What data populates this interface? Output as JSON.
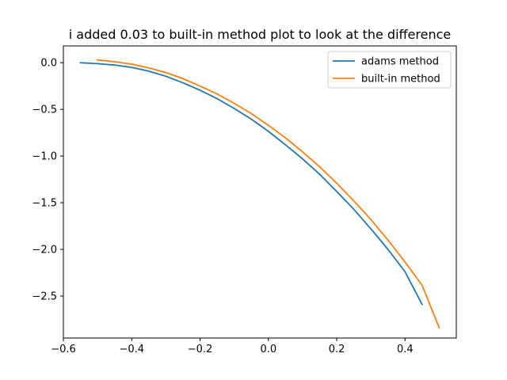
{
  "chart_data": {
    "type": "line",
    "title": "i added 0.03 to built-in method plot to look at the difference",
    "xlabel": "",
    "ylabel": "",
    "xlim": [
      -0.6,
      0.55
    ],
    "ylim": [
      -2.95,
      0.18
    ],
    "xticks": [
      -0.6,
      -0.4,
      -0.2,
      0.0,
      0.2,
      0.4
    ],
    "xtick_labels": [
      "−0.6",
      "−0.4",
      "−0.2",
      "0.0",
      "0.2",
      "0.4"
    ],
    "yticks": [
      0.0,
      -0.5,
      -1.0,
      -1.5,
      -2.0,
      -2.5
    ],
    "ytick_labels": [
      "0.0",
      "−0.5",
      "−1.0",
      "−1.5",
      "−2.0",
      "−2.5"
    ],
    "grid": false,
    "legend_position": "top-right",
    "series": [
      {
        "name": "adams method",
        "color": "#1f77b4",
        "x": [
          -0.55,
          -0.5,
          -0.45,
          -0.4,
          -0.35,
          -0.3,
          -0.25,
          -0.2,
          -0.15,
          -0.1,
          -0.05,
          0.0,
          0.05,
          0.1,
          0.15,
          0.2,
          0.25,
          0.3,
          0.35,
          0.4,
          0.45
        ],
        "y": [
          0.0,
          -0.01,
          -0.025,
          -0.05,
          -0.09,
          -0.145,
          -0.215,
          -0.295,
          -0.385,
          -0.49,
          -0.605,
          -0.735,
          -0.88,
          -1.03,
          -1.195,
          -1.38,
          -1.57,
          -1.78,
          -2.0,
          -2.24,
          -2.59
        ]
      },
      {
        "name": "built-in method",
        "color": "#ff7f0e",
        "x": [
          -0.5,
          -0.45,
          -0.4,
          -0.35,
          -0.3,
          -0.25,
          -0.2,
          -0.15,
          -0.1,
          -0.05,
          0.0,
          0.05,
          0.1,
          0.15,
          0.2,
          0.25,
          0.3,
          0.35,
          0.4,
          0.45,
          0.5
        ],
        "y": [
          0.03,
          0.01,
          -0.015,
          -0.055,
          -0.105,
          -0.17,
          -0.25,
          -0.335,
          -0.435,
          -0.545,
          -0.67,
          -0.805,
          -0.955,
          -1.115,
          -1.29,
          -1.48,
          -1.68,
          -1.9,
          -2.135,
          -2.385,
          -2.84
        ]
      }
    ]
  }
}
